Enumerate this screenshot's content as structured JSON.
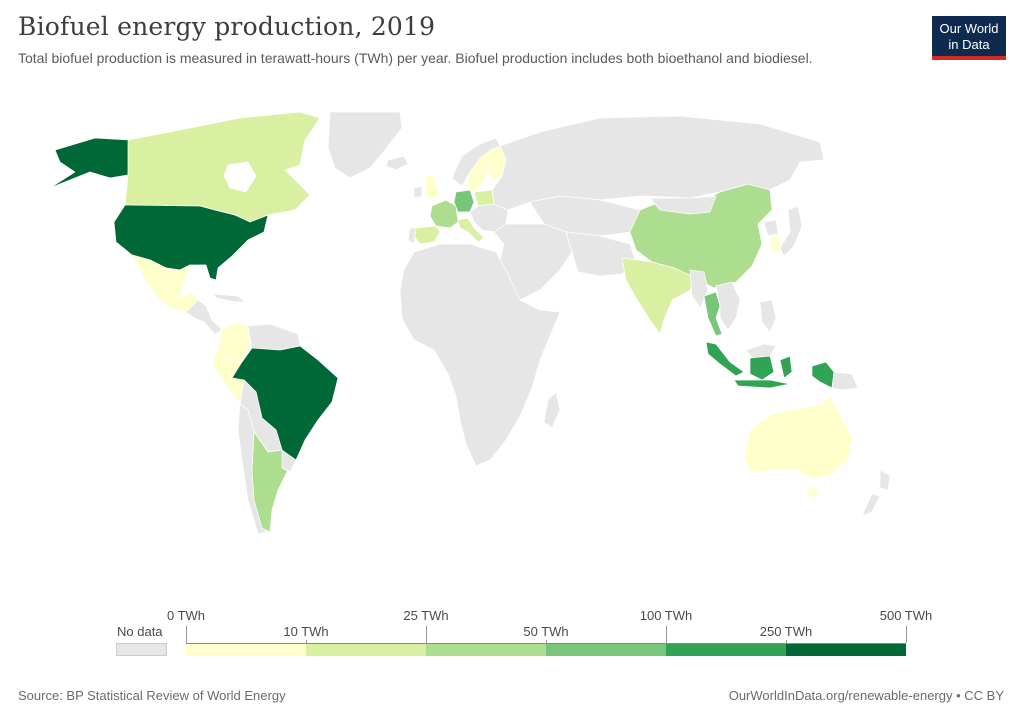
{
  "header": {
    "title": "Biofuel energy production, 2019",
    "subtitle": "Total biofuel production is measured in terawatt-hours (TWh) per year. Biofuel production includes both bioethanol and biodiesel."
  },
  "logo": {
    "line1": "Our World",
    "line2": "in Data",
    "bg_color": "#0f2a4f",
    "accent_color": "#d42b22"
  },
  "legend": {
    "no_data_label": "No data",
    "top_labels": [
      "0 TWh",
      "25 TWh",
      "100 TWh",
      "500 TWh"
    ],
    "bottom_labels": [
      "10 TWh",
      "50 TWh",
      "250 TWh"
    ],
    "bins": [
      {
        "from": 0,
        "to": 10,
        "color": "#ffffcc"
      },
      {
        "from": 10,
        "to": 25,
        "color": "#d9f0a3"
      },
      {
        "from": 25,
        "to": 50,
        "color": "#addd8e"
      },
      {
        "from": 50,
        "to": 100,
        "color": "#78c679"
      },
      {
        "from": 100,
        "to": 250,
        "color": "#31a354"
      },
      {
        "from": 250,
        "to": 500,
        "color": "#006837"
      }
    ],
    "no_data_color": "#e6e6e6"
  },
  "regions": [
    {
      "name": "United States",
      "color": "#006837"
    },
    {
      "name": "Brazil",
      "color": "#006837"
    },
    {
      "name": "Indonesia",
      "color": "#31a354"
    },
    {
      "name": "Thailand",
      "color": "#78c679"
    },
    {
      "name": "Germany",
      "color": "#78c679"
    },
    {
      "name": "China",
      "color": "#addd8e"
    },
    {
      "name": "Argentina",
      "color": "#addd8e"
    },
    {
      "name": "France",
      "color": "#addd8e"
    },
    {
      "name": "Canada",
      "color": "#d9f0a3"
    },
    {
      "name": "India",
      "color": "#d9f0a3"
    },
    {
      "name": "Spain",
      "color": "#d9f0a3"
    },
    {
      "name": "Poland",
      "color": "#d9f0a3"
    },
    {
      "name": "Italy",
      "color": "#d9f0a3"
    },
    {
      "name": "Colombia",
      "color": "#ffffcc"
    },
    {
      "name": "Mexico",
      "color": "#ffffcc"
    },
    {
      "name": "Australia",
      "color": "#ffffcc"
    },
    {
      "name": "Sweden",
      "color": "#ffffcc"
    },
    {
      "name": "Finland",
      "color": "#ffffcc"
    },
    {
      "name": "United Kingdom",
      "color": "#ffffcc"
    },
    {
      "name": "South Korea",
      "color": "#ffffcc"
    },
    {
      "name": "Peru",
      "color": "#ffffcc"
    }
  ],
  "footer": {
    "source": "Source: BP Statistical Review of World Energy",
    "right": "OurWorldInData.org/renewable-energy • CC BY"
  }
}
